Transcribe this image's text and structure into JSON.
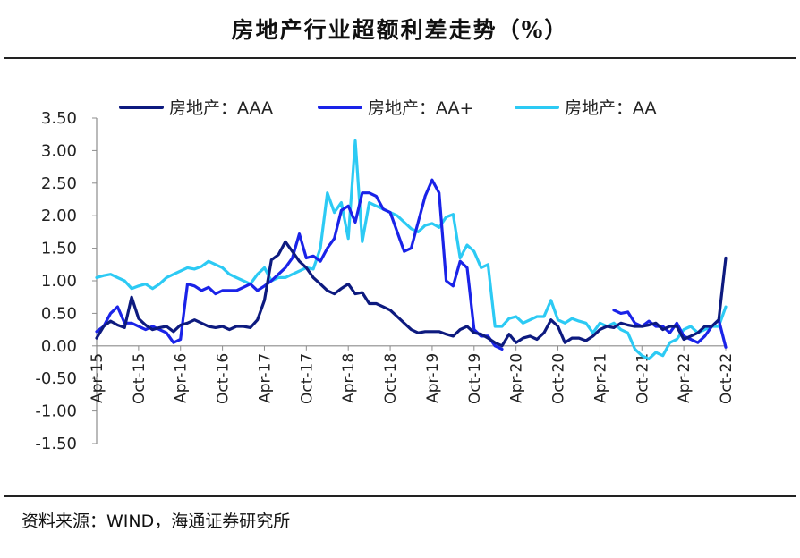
{
  "title": "房地产行业超额利差走势（%）",
  "source": "资料来源：WIND，海通证券研究所",
  "colors": {
    "aaa": "#0d1a7f",
    "aa_plus": "#1a23e8",
    "aa": "#2ccaf4",
    "axis": "#8c8c8c"
  },
  "chart_data": {
    "type": "line",
    "title": "房地产行业超额利差走势（%）",
    "xlabel": "",
    "ylabel": "",
    "ylim": [
      -1.5,
      3.5
    ],
    "yticks": [
      "3.50",
      "3.00",
      "2.50",
      "2.00",
      "1.50",
      "1.00",
      "0.50",
      "0.00",
      "-0.50",
      "-1.00",
      "-1.50"
    ],
    "ytick_values": [
      3.5,
      3.0,
      2.5,
      2.0,
      1.5,
      1.0,
      0.5,
      0.0,
      -0.5,
      -1.0,
      -1.5
    ],
    "xticks": [
      "Apr-15",
      "Oct-15",
      "Apr-16",
      "Oct-16",
      "Apr-17",
      "Oct-17",
      "Apr-18",
      "Oct-18",
      "Apr-19",
      "Oct-19",
      "Apr-20",
      "Oct-20",
      "Apr-21",
      "Oct-21",
      "Apr-22",
      "Oct-22"
    ],
    "x_start": "Apr-15",
    "x_step_months": 1,
    "legend_position": "top",
    "series": [
      {
        "name": "房地产：AAA",
        "key": "aaa",
        "values": [
          0.12,
          0.3,
          0.38,
          0.32,
          0.28,
          0.75,
          0.42,
          0.32,
          0.25,
          0.28,
          0.3,
          0.22,
          0.32,
          0.35,
          0.4,
          0.35,
          0.3,
          0.28,
          0.3,
          0.25,
          0.3,
          0.3,
          0.28,
          0.4,
          0.7,
          1.32,
          1.4,
          1.6,
          1.45,
          1.3,
          1.2,
          1.05,
          0.95,
          0.85,
          0.8,
          0.88,
          0.95,
          0.8,
          0.82,
          0.65,
          0.65,
          0.6,
          0.55,
          0.45,
          0.35,
          0.25,
          0.2,
          0.22,
          0.22,
          0.22,
          0.18,
          0.15,
          0.25,
          0.3,
          0.2,
          0.18,
          0.12,
          0.05,
          0.0,
          0.18,
          0.05,
          0.12,
          0.15,
          0.1,
          0.2,
          0.4,
          0.3,
          0.05,
          0.12,
          0.12,
          0.08,
          0.15,
          0.25,
          0.3,
          0.28,
          0.35,
          0.32,
          0.3,
          0.3,
          0.32,
          0.35,
          0.25,
          0.3,
          0.3,
          0.1,
          0.15,
          0.2,
          0.3,
          0.3,
          0.4,
          1.35
        ]
      },
      {
        "name": "房地产：AA+",
        "key": "aa_plus",
        "values": [
          0.22,
          0.3,
          0.5,
          0.6,
          0.35,
          0.35,
          0.3,
          0.25,
          0.3,
          0.25,
          0.2,
          0.05,
          0.1,
          0.95,
          0.92,
          0.85,
          0.9,
          0.8,
          0.85,
          0.85,
          0.85,
          0.9,
          0.95,
          0.85,
          0.92,
          1.0,
          1.1,
          1.2,
          1.35,
          1.72,
          1.35,
          1.38,
          1.3,
          1.5,
          1.65,
          2.08,
          2.15,
          1.9,
          2.35,
          2.35,
          2.3,
          2.1,
          2.05,
          1.75,
          1.45,
          1.5,
          1.9,
          2.3,
          2.55,
          2.35,
          1.0,
          0.92,
          1.3,
          1.2,
          0.25,
          0.15,
          0.15,
          0.0,
          -0.05,
          null,
          null,
          null,
          null,
          null,
          null,
          null,
          null,
          null,
          null,
          null,
          null,
          null,
          null,
          null,
          0.55,
          0.5,
          0.52,
          0.35,
          0.3,
          0.38,
          0.3,
          0.3,
          0.2,
          0.35,
          0.15,
          0.1,
          0.05,
          0.15,
          0.3,
          0.4,
          -0.02
        ]
      },
      {
        "name": "房地产：AA",
        "key": "aa",
        "values": [
          1.05,
          1.08,
          1.1,
          1.05,
          1.0,
          0.88,
          0.92,
          0.95,
          0.88,
          0.95,
          1.05,
          1.1,
          1.15,
          1.2,
          1.18,
          1.22,
          1.3,
          1.25,
          1.2,
          1.1,
          1.05,
          1.0,
          0.95,
          1.1,
          1.2,
          1.0,
          1.05,
          1.05,
          1.1,
          1.15,
          1.2,
          1.18,
          1.5,
          2.35,
          2.05,
          2.2,
          1.65,
          3.15,
          1.6,
          2.2,
          2.15,
          2.1,
          2.05,
          2.0,
          1.9,
          1.8,
          1.75,
          1.85,
          1.88,
          1.82,
          1.98,
          2.02,
          1.35,
          1.55,
          1.45,
          1.2,
          1.25,
          0.3,
          0.3,
          0.42,
          0.45,
          0.35,
          0.4,
          0.45,
          0.45,
          0.7,
          0.4,
          0.35,
          0.42,
          0.38,
          0.35,
          0.2,
          0.35,
          0.3,
          0.35,
          0.25,
          0.2,
          -0.05,
          -0.15,
          -0.2,
          -0.1,
          -0.15,
          0.05,
          0.1,
          0.25,
          0.3,
          0.2,
          0.25,
          0.3,
          0.3,
          0.6
        ]
      }
    ]
  }
}
